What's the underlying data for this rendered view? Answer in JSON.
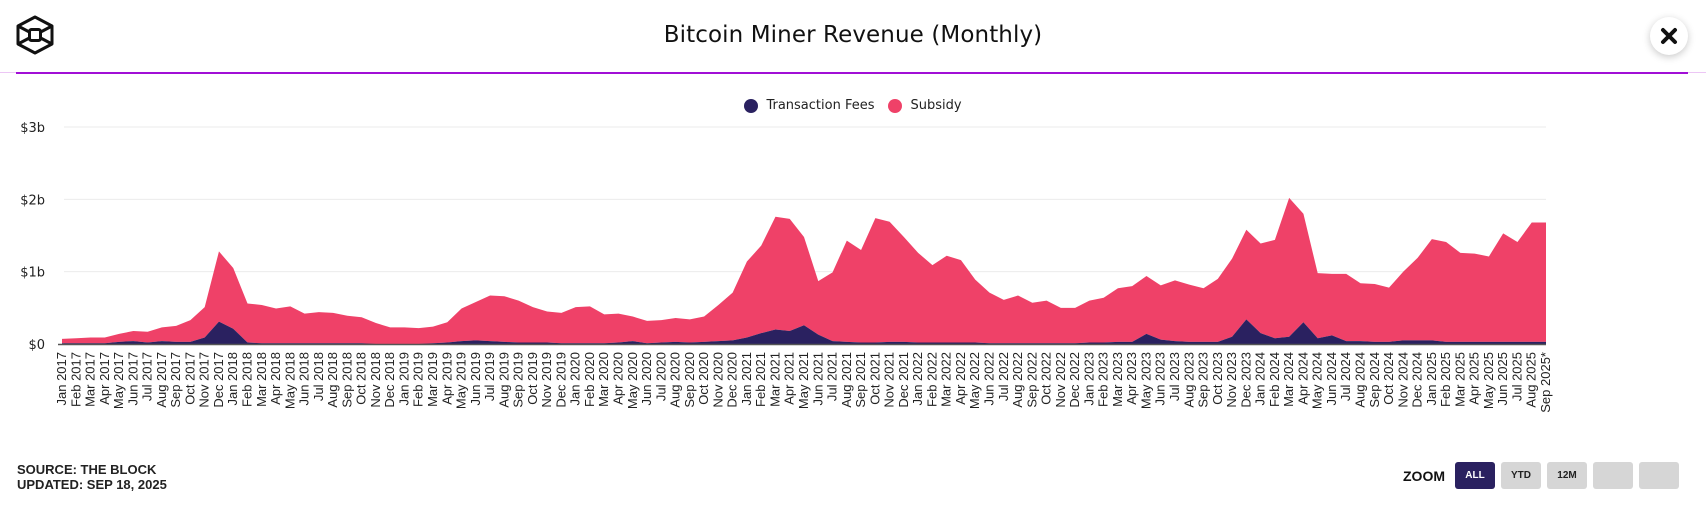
{
  "header": {
    "title": "Bitcoin Miner Revenue (Monthly)",
    "logo_icon": "the-block-cube-logo",
    "close_icon": "close-x-icon"
  },
  "legend": [
    {
      "label": "Transaction Fees",
      "color": "#2a2160"
    },
    {
      "label": "Subsidy",
      "color": "#ef4168"
    }
  ],
  "footer": {
    "source": "SOURCE: THE BLOCK",
    "updated": "UPDATED: SEP 18, 2025"
  },
  "zoom_controls": {
    "label": "ZOOM",
    "buttons": [
      {
        "label": "ALL",
        "active": true
      },
      {
        "label": "YTD",
        "active": false
      },
      {
        "label": "12M",
        "active": false
      },
      {
        "label": "",
        "active": false
      },
      {
        "label": "",
        "active": false
      }
    ]
  },
  "chart_data": {
    "type": "area",
    "stacked": true,
    "title": "Bitcoin Miner Revenue (Monthly)",
    "xlabel": "",
    "ylabel": "",
    "ylim": [
      0,
      3
    ],
    "y_unit": "billion USD",
    "yticks": [
      0,
      1,
      2,
      3
    ],
    "ytick_labels": [
      "$0",
      "$1b",
      "$2b",
      "$3b"
    ],
    "grid": true,
    "legend_position": "top-center",
    "categories": [
      "Jan 2017",
      "Feb 2017",
      "Mar 2017",
      "Apr 2017",
      "May 2017",
      "Jun 2017",
      "Jul 2017",
      "Aug 2017",
      "Sep 2017",
      "Oct 2017",
      "Nov 2017",
      "Dec 2017",
      "Jan 2018",
      "Feb 2018",
      "Mar 2018",
      "Apr 2018",
      "May 2018",
      "Jun 2018",
      "Jul 2018",
      "Aug 2018",
      "Sep 2018",
      "Oct 2018",
      "Nov 2018",
      "Dec 2018",
      "Jan 2019",
      "Feb 2019",
      "Mar 2019",
      "Apr 2019",
      "May 2019",
      "Jun 2019",
      "Jul 2019",
      "Aug 2019",
      "Sep 2019",
      "Oct 2019",
      "Nov 2019",
      "Dec 2019",
      "Jan 2020",
      "Feb 2020",
      "Mar 2020",
      "Apr 2020",
      "May 2020",
      "Jun 2020",
      "Jul 2020",
      "Aug 2020",
      "Sep 2020",
      "Oct 2020",
      "Nov 2020",
      "Dec 2020",
      "Jan 2021",
      "Feb 2021",
      "Mar 2021",
      "Apr 2021",
      "May 2021",
      "Jun 2021",
      "Jul 2021",
      "Aug 2021",
      "Sep 2021",
      "Oct 2021",
      "Nov 2021",
      "Dec 2021",
      "Jan 2022",
      "Feb 2022",
      "Mar 2022",
      "Apr 2022",
      "May 2022",
      "Jun 2022",
      "Jul 2022",
      "Aug 2022",
      "Sep 2022",
      "Oct 2022",
      "Nov 2022",
      "Dec 2022",
      "Jan 2023",
      "Feb 2023",
      "Mar 2023",
      "Apr 2023",
      "May 2023",
      "Jun 2023",
      "Jul 2023",
      "Aug 2023",
      "Sep 2023",
      "Oct 2023",
      "Nov 2023",
      "Dec 2023",
      "Jan 2024",
      "Feb 2024",
      "Mar 2024",
      "Apr 2024",
      "May 2024",
      "Jun 2024",
      "Jul 2024",
      "Aug 2024",
      "Sep 2024",
      "Oct 2024",
      "Nov 2024",
      "Dec 2024",
      "Jan 2025",
      "Feb 2025",
      "Mar 2025",
      "Apr 2025",
      "May 2025",
      "Jun 2025",
      "Jul 2025",
      "Aug 2025",
      "Sep 2025*"
    ],
    "series": [
      {
        "name": "Transaction Fees",
        "color": "#2a2160",
        "values": [
          0.01,
          0.01,
          0.01,
          0.01,
          0.03,
          0.04,
          0.02,
          0.04,
          0.03,
          0.03,
          0.09,
          0.31,
          0.21,
          0.02,
          0.01,
          0.01,
          0.01,
          0.01,
          0.01,
          0.01,
          0.01,
          0.01,
          0.0,
          0.0,
          0.0,
          0.0,
          0.01,
          0.02,
          0.04,
          0.05,
          0.04,
          0.03,
          0.02,
          0.02,
          0.02,
          0.01,
          0.01,
          0.01,
          0.01,
          0.02,
          0.04,
          0.01,
          0.02,
          0.03,
          0.02,
          0.03,
          0.04,
          0.05,
          0.09,
          0.15,
          0.2,
          0.18,
          0.26,
          0.13,
          0.04,
          0.03,
          0.02,
          0.02,
          0.03,
          0.03,
          0.02,
          0.02,
          0.02,
          0.02,
          0.02,
          0.01,
          0.01,
          0.01,
          0.01,
          0.01,
          0.01,
          0.01,
          0.02,
          0.02,
          0.03,
          0.03,
          0.14,
          0.06,
          0.04,
          0.03,
          0.03,
          0.03,
          0.1,
          0.34,
          0.15,
          0.08,
          0.1,
          0.3,
          0.08,
          0.12,
          0.04,
          0.04,
          0.03,
          0.03,
          0.05,
          0.05,
          0.05,
          0.03,
          0.03,
          0.03,
          0.03,
          0.03,
          0.03,
          0.03,
          0.03
        ]
      },
      {
        "name": "Subsidy",
        "color": "#ef4168",
        "values": [
          0.06,
          0.07,
          0.08,
          0.08,
          0.11,
          0.14,
          0.15,
          0.19,
          0.22,
          0.3,
          0.42,
          0.97,
          0.84,
          0.54,
          0.53,
          0.48,
          0.51,
          0.41,
          0.43,
          0.42,
          0.38,
          0.36,
          0.29,
          0.23,
          0.23,
          0.22,
          0.23,
          0.28,
          0.45,
          0.53,
          0.63,
          0.63,
          0.58,
          0.49,
          0.43,
          0.42,
          0.5,
          0.51,
          0.4,
          0.4,
          0.34,
          0.31,
          0.31,
          0.33,
          0.32,
          0.35,
          0.5,
          0.66,
          1.05,
          1.21,
          1.56,
          1.55,
          1.22,
          0.74,
          0.95,
          1.4,
          1.28,
          1.72,
          1.66,
          1.45,
          1.24,
          1.07,
          1.2,
          1.14,
          0.87,
          0.7,
          0.6,
          0.66,
          0.56,
          0.59,
          0.49,
          0.49,
          0.58,
          0.62,
          0.74,
          0.77,
          0.8,
          0.75,
          0.84,
          0.79,
          0.74,
          0.87,
          1.08,
          1.24,
          1.24,
          1.36,
          1.92,
          1.5,
          0.9,
          0.85,
          0.93,
          0.8,
          0.8,
          0.75,
          0.95,
          1.14,
          1.4,
          1.38,
          1.23,
          1.22,
          1.18,
          1.5,
          1.38,
          1.65,
          1.65
        ]
      }
    ]
  }
}
